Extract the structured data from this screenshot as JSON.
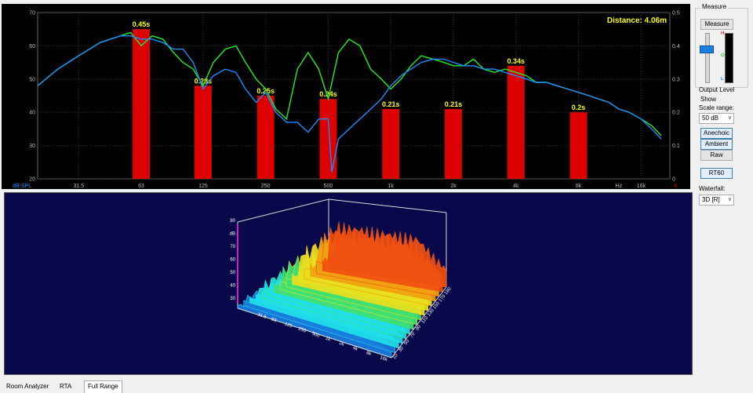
{
  "top_chart": {
    "distance_text": "Distance: 4.06m",
    "y_unit_label": "dB-SPL",
    "y_left_ticks": [
      "70",
      "60",
      "50",
      "40",
      "30",
      "20"
    ],
    "y_right_ticks": [
      "0.5",
      "0.4",
      "0.3",
      "0.2",
      "0.1",
      "0"
    ],
    "x_ticks": [
      "31.5",
      "63",
      "125",
      "250",
      "500",
      "1k",
      "2k",
      "4k",
      "8k",
      "Hz",
      "16k"
    ],
    "x_end_marker": "k"
  },
  "chart_data": {
    "type": "bar",
    "categories": [
      "63",
      "125",
      "250",
      "500",
      "1k",
      "2k",
      "4k",
      "8k"
    ],
    "values": [
      0.45,
      0.28,
      0.25,
      0.24,
      0.21,
      0.21,
      0.34,
      0.2
    ],
    "value_labels": [
      "0.45s",
      "0.28s",
      "0.25s",
      "0.24s",
      "0.21s",
      "0.21s",
      "0.34s",
      "0.2s"
    ],
    "ylim_left": [
      20,
      70
    ],
    "ylim_right": [
      0,
      0.5
    ],
    "bar_color": "#dd0000",
    "series": [
      {
        "color": "#22ee22",
        "x": [
          20,
          25,
          31.5,
          40,
          50,
          56,
          63,
          71,
          80,
          90,
          100,
          112,
          125,
          140,
          160,
          180,
          200,
          225,
          250,
          280,
          315,
          355,
          400,
          450,
          500,
          560,
          630,
          710,
          800,
          900,
          1000,
          1120,
          1250,
          1400,
          1600,
          1800,
          2000,
          2240,
          2500,
          2800,
          3150,
          3550,
          4000,
          4500,
          5000,
          5600,
          6300,
          7100,
          8000,
          9000,
          10000,
          11200,
          12500,
          14000,
          16000,
          18000,
          20000
        ],
        "y": [
          48,
          53,
          57,
          61,
          63,
          64,
          60,
          63,
          62,
          58,
          55,
          53,
          48,
          55,
          59,
          60,
          55,
          50,
          47,
          41,
          38,
          53,
          58,
          53,
          44,
          58,
          62,
          60,
          53,
          50,
          47,
          50,
          54,
          57,
          56,
          55,
          54,
          54,
          56,
          53,
          52,
          53,
          52,
          51,
          49,
          49,
          48,
          47,
          46,
          45,
          44,
          43,
          41,
          40,
          38,
          36,
          33
        ]
      },
      {
        "color": "#1c8cff",
        "x": [
          20,
          25,
          31.5,
          40,
          50,
          56,
          63,
          71,
          80,
          90,
          100,
          112,
          125,
          140,
          160,
          180,
          200,
          225,
          250,
          280,
          315,
          355,
          400,
          450,
          500,
          520,
          560,
          630,
          710,
          800,
          900,
          1000,
          1120,
          1250,
          1400,
          1600,
          1800,
          2000,
          2240,
          2500,
          2800,
          3150,
          3550,
          4000,
          4500,
          5000,
          5600,
          6300,
          7100,
          8000,
          9000,
          10000,
          11200,
          12500,
          14000,
          16000,
          18000,
          20000
        ],
        "y": [
          48,
          53,
          57,
          61,
          63,
          63,
          62,
          62,
          61,
          59,
          59,
          55,
          47,
          51,
          53,
          52,
          47,
          43,
          46,
          40,
          37,
          37,
          34,
          38,
          38,
          22,
          32,
          35,
          38,
          41,
          44,
          48,
          51,
          53,
          55,
          56,
          56,
          55,
          54,
          54,
          53,
          53,
          52,
          51,
          50,
          49,
          49,
          48,
          47,
          46,
          45,
          44,
          43,
          41,
          40,
          38,
          35,
          32
        ]
      }
    ]
  },
  "waterfall": {
    "z_ticks": [
      "80",
      "dB",
      "70",
      "60",
      "50",
      "40",
      "30"
    ],
    "x_ticks": [
      "31.5",
      "63",
      "125",
      "250",
      "500",
      "1k",
      "2k",
      "4k",
      "8k",
      "16k"
    ],
    "t_ticks": [
      "10",
      "30",
      "50",
      "70",
      "90",
      "110",
      "130",
      "150",
      "170",
      "190"
    ]
  },
  "sidebar": {
    "measure_group_title": "Measure",
    "measure_button": "Measure",
    "meter_letters": [
      "H",
      "G",
      "L"
    ],
    "meter_level": 0.7,
    "output_level_label": "Output Level",
    "show_label": "Show",
    "scale_range_label": "Scale range:",
    "scale_range_value": "50 dB",
    "anechoic_button": "Anechoic",
    "ambient_button": "Ambient",
    "raw_button": "Raw",
    "rt60_button": "RT60",
    "waterfall_label": "Waterfall:",
    "waterfall_value": "3D [R]"
  },
  "tabs": [
    "Room Analyzer",
    "RTA",
    "Full Range"
  ]
}
